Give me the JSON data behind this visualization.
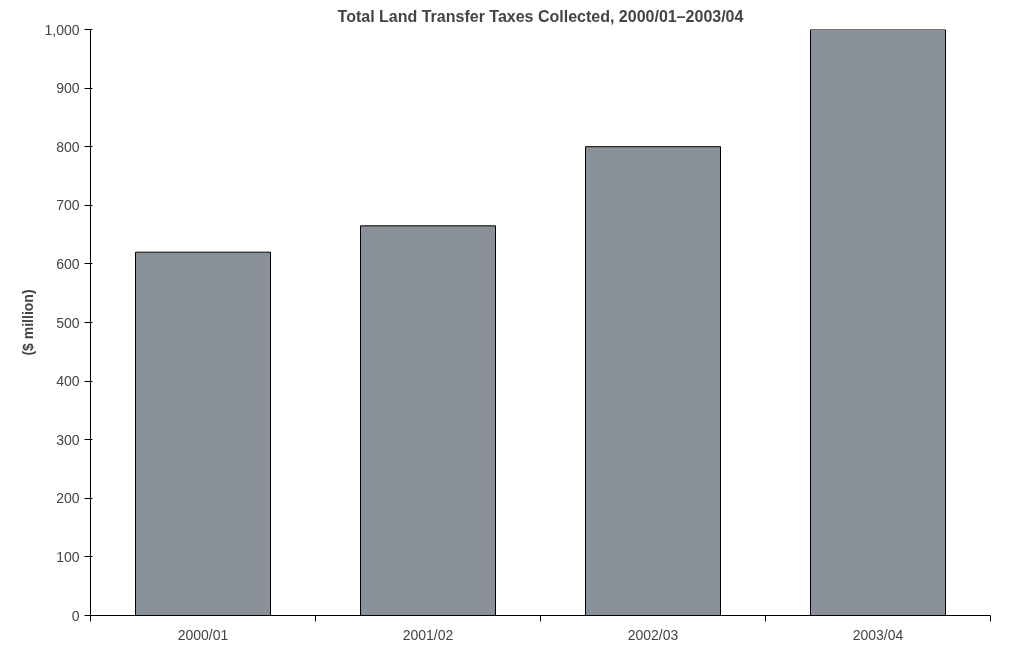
{
  "chart_data": {
    "type": "bar",
    "title": "Total Land Transfer Taxes Collected, 2000/01–2003/04",
    "ylabel": "($ million)",
    "categories": [
      "2000/01",
      "2001/02",
      "2002/03",
      "2003/04"
    ],
    "values": [
      620,
      665,
      800,
      1000
    ],
    "color": "#8a9198",
    "ylim": [
      0,
      1000
    ],
    "yticks": [
      0,
      100,
      200,
      300,
      400,
      500,
      600,
      700,
      800,
      900,
      {
        "value": 1000,
        "label": "1,000"
      }
    ],
    "grid": false
  }
}
